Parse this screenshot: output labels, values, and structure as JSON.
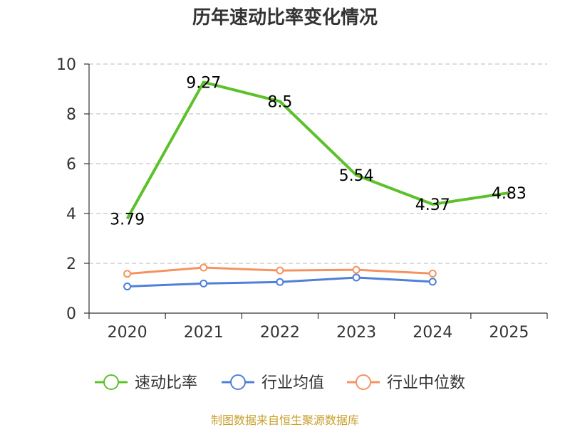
{
  "chart_data": {
    "type": "line",
    "title": "历年速动比率变化情况",
    "categories": [
      "2020",
      "2021",
      "2022",
      "2023",
      "2024",
      "2025"
    ],
    "ylim": [
      0,
      10
    ],
    "yticks": [
      0,
      2,
      4,
      6,
      8,
      10
    ],
    "grid": true,
    "legend_position": "bottom",
    "series": [
      {
        "name": "速动比率",
        "color": "#5cc12a",
        "values": [
          3.79,
          9.27,
          8.5,
          5.54,
          4.37,
          4.83
        ],
        "labels": [
          "3.79",
          "9.27",
          "8.5",
          "5.54",
          "4.37",
          "4.83"
        ]
      },
      {
        "name": "行业均值",
        "color": "#4f7fda",
        "values": [
          1.07,
          1.19,
          1.25,
          1.43,
          1.26,
          null
        ]
      },
      {
        "name": "行业中位数",
        "color": "#f59360",
        "values": [
          1.58,
          1.83,
          1.71,
          1.74,
          1.59,
          null
        ]
      }
    ]
  },
  "source": {
    "text": "制图数据来自恒生聚源数据库",
    "color": "#c8a02c"
  }
}
